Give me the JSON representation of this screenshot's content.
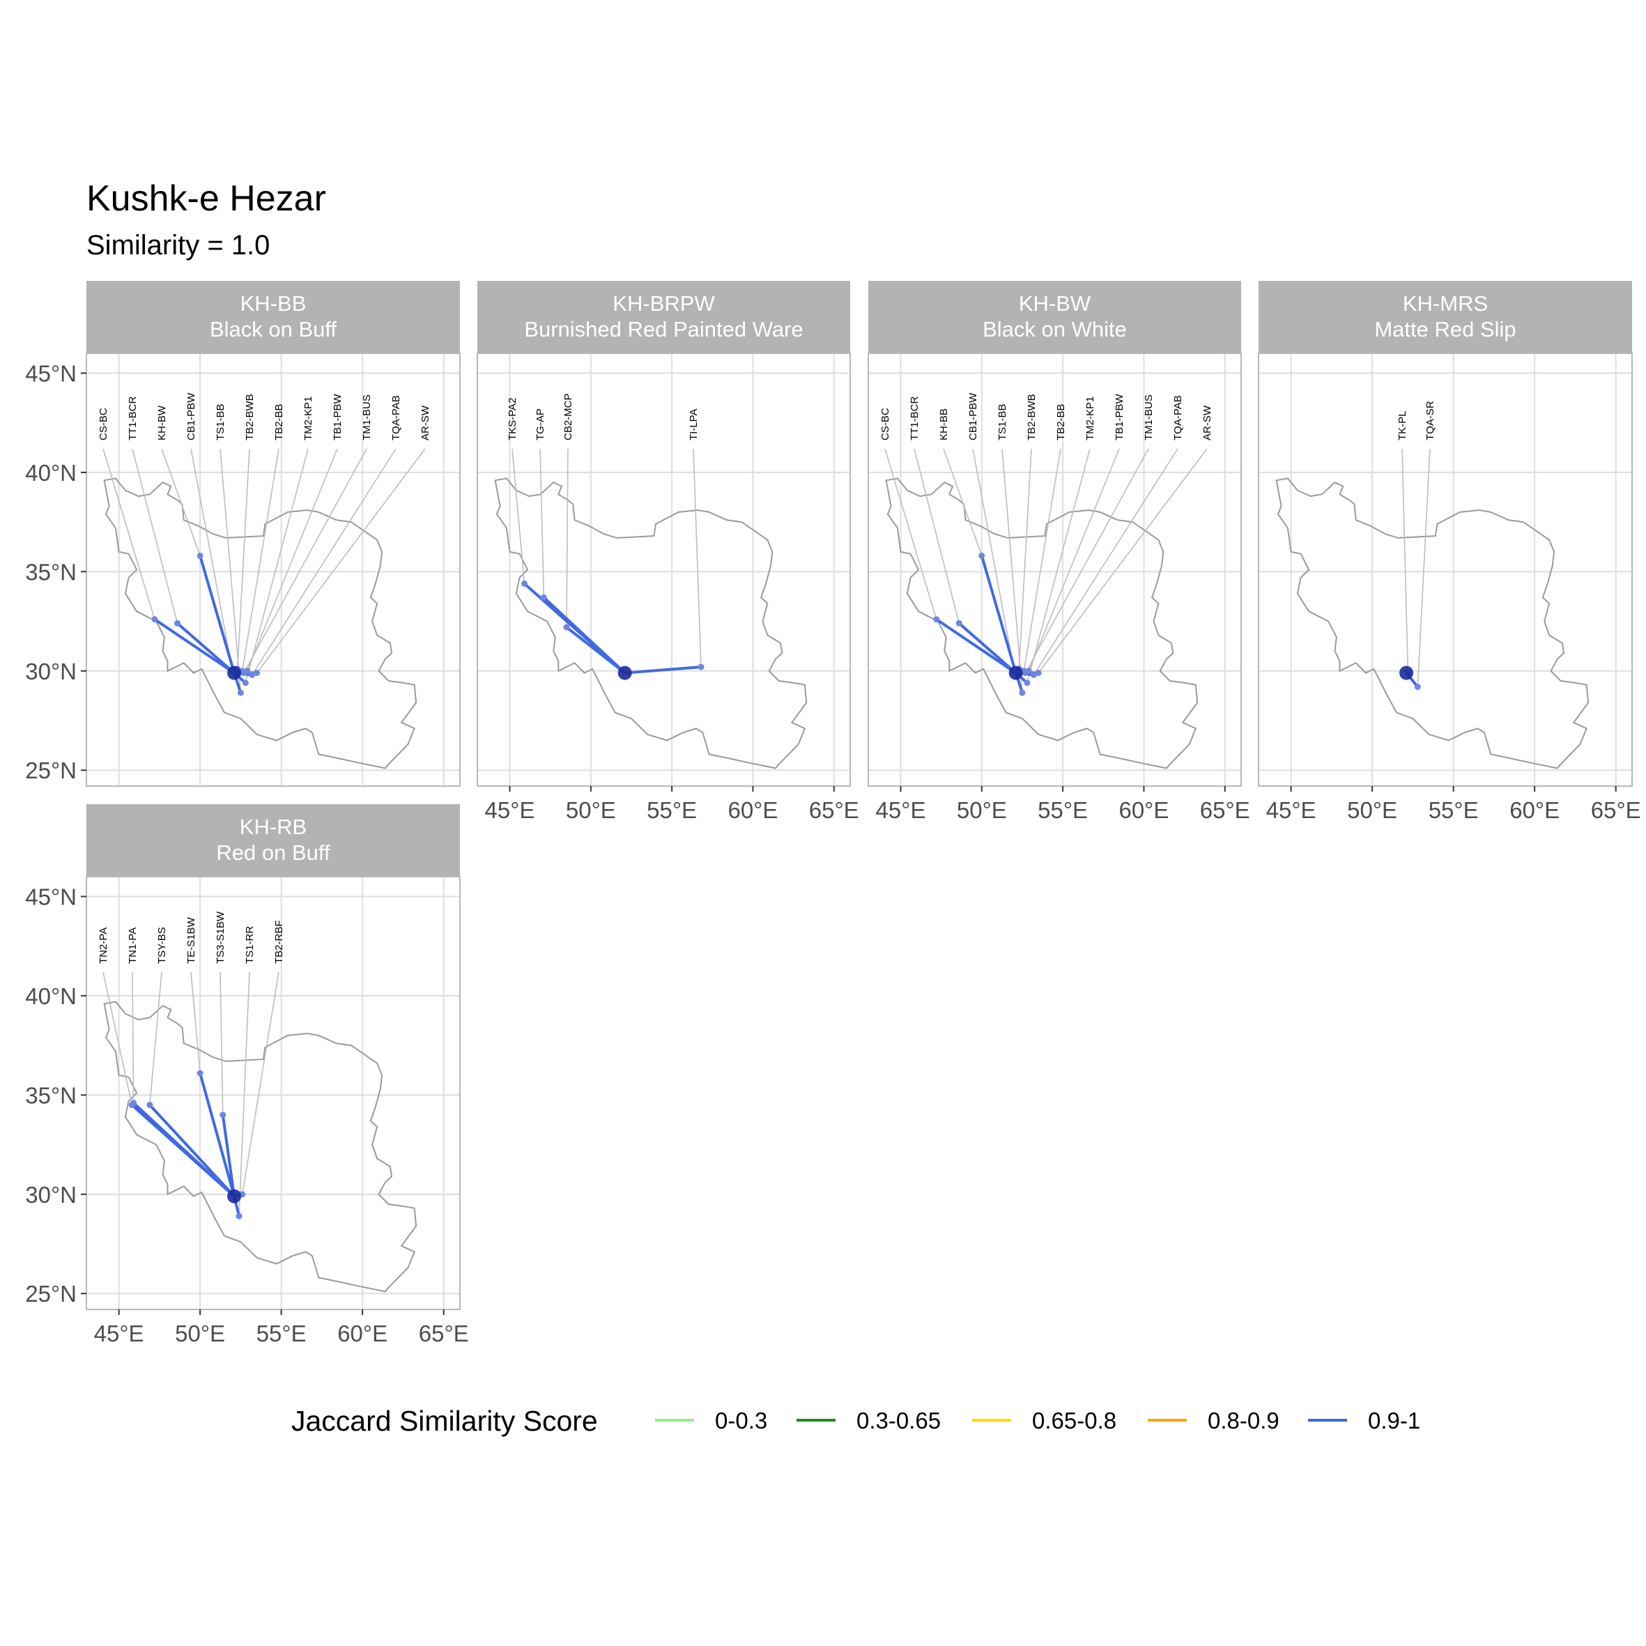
{
  "title": "Kushk-e Hezar",
  "subtitle": "Similarity = 1.0",
  "colors": {
    "strip": "#b3b3b3",
    "grid": "#dedede",
    "border": "#b8b8b8",
    "map_outline": "#9a9a9a",
    "leader": "#bdbdbd",
    "origin": "#1a2a9c"
  },
  "axes": {
    "x_ticks": [
      45,
      50,
      55,
      60,
      65
    ],
    "x_tick_labels": [
      "45°E",
      "50°E",
      "55°E",
      "60°E",
      "65°E"
    ],
    "y_ticks": [
      25,
      30,
      35,
      40,
      45
    ],
    "y_tick_labels": [
      "25°N",
      "30°N",
      "35°N",
      "40°N",
      "45°N"
    ],
    "xlim": [
      43,
      66
    ],
    "ylim": [
      24.2,
      46
    ]
  },
  "origin": {
    "lon": 52.1,
    "lat": 29.9
  },
  "legend": {
    "title": "Jaccard Similarity Score",
    "entries": [
      {
        "label": "0-0.3",
        "color": "#90ee90"
      },
      {
        "label": "0.3-0.65",
        "color": "#228b22"
      },
      {
        "label": "0.65-0.8",
        "color": "#ffd700"
      },
      {
        "label": "0.8-0.9",
        "color": "#ffa500"
      },
      {
        "label": "0.9-1",
        "color": "#4169e1"
      }
    ]
  },
  "panels": [
    {
      "code": "KH-BB",
      "name": "Black on Buff",
      "sites": [
        {
          "label": "CS-BC",
          "lon": 47.2,
          "lat": 32.6
        },
        {
          "label": "TT1-BCR",
          "lon": 48.6,
          "lat": 32.4
        },
        {
          "label": "KH-BW",
          "lon": 50.0,
          "lat": 35.8
        },
        {
          "label": "CB1-PBW",
          "lon": 52.0,
          "lat": 30.0
        },
        {
          "label": "TS1-BB",
          "lon": 52.5,
          "lat": 28.9
        },
        {
          "label": "TB2-BWB",
          "lon": 52.3,
          "lat": 30.1
        },
        {
          "label": "TB2-BB",
          "lon": 52.6,
          "lat": 30.0
        },
        {
          "label": "TM2-KP1",
          "lon": 52.8,
          "lat": 29.4
        },
        {
          "label": "TB1-PBW",
          "lon": 52.9,
          "lat": 30.0
        },
        {
          "label": "TM1-BUS",
          "lon": 52.7,
          "lat": 29.9
        },
        {
          "label": "TQA-PAB",
          "lon": 53.2,
          "lat": 29.8
        },
        {
          "label": "AR-SW",
          "lon": 53.5,
          "lat": 29.9
        }
      ]
    },
    {
      "code": "KH-BRPW",
      "name": "Burnished Red Painted Ware",
      "sites": [
        {
          "label": "TKS-PA2",
          "lon": 45.9,
          "lat": 34.4
        },
        {
          "label": "TG-AP",
          "lon": 47.1,
          "lat": 33.7
        },
        {
          "label": "CB2-MCP",
          "lon": 48.5,
          "lat": 32.2
        },
        {
          "label": "TI-LPA",
          "lon": 56.8,
          "lat": 30.2
        }
      ]
    },
    {
      "code": "KH-BW",
      "name": "Black on White",
      "sites": [
        {
          "label": "CS-BC",
          "lon": 47.2,
          "lat": 32.6
        },
        {
          "label": "TT1-BCR",
          "lon": 48.6,
          "lat": 32.4
        },
        {
          "label": "KH-BB",
          "lon": 50.0,
          "lat": 35.8
        },
        {
          "label": "CB1-PBW",
          "lon": 52.0,
          "lat": 30.0
        },
        {
          "label": "TS1-BB",
          "lon": 52.5,
          "lat": 28.9
        },
        {
          "label": "TB2-BWB",
          "lon": 52.3,
          "lat": 30.1
        },
        {
          "label": "TB2-BB",
          "lon": 52.6,
          "lat": 30.0
        },
        {
          "label": "TM2-KP1",
          "lon": 52.8,
          "lat": 29.4
        },
        {
          "label": "TB1-PBW",
          "lon": 52.9,
          "lat": 30.0
        },
        {
          "label": "TM1-BUS",
          "lon": 52.7,
          "lat": 29.9
        },
        {
          "label": "TQA-PAB",
          "lon": 53.2,
          "lat": 29.8
        },
        {
          "label": "AR-SW",
          "lon": 53.5,
          "lat": 29.9
        }
      ]
    },
    {
      "code": "KH-MRS",
      "name": "Matte Red Slip",
      "sites": [
        {
          "label": "TK-PL",
          "lon": 52.2,
          "lat": 29.9
        },
        {
          "label": "TQA-SR",
          "lon": 52.8,
          "lat": 29.2
        }
      ]
    },
    {
      "code": "KH-RB",
      "name": "Red on Buff",
      "sites": [
        {
          "label": "TN2-PA",
          "lon": 45.8,
          "lat": 34.5
        },
        {
          "label": "TN1-PA",
          "lon": 45.9,
          "lat": 34.6
        },
        {
          "label": "TSY-BS",
          "lon": 46.9,
          "lat": 34.5
        },
        {
          "label": "TE-S1BW",
          "lon": 50.0,
          "lat": 36.1
        },
        {
          "label": "TS3-S1BW",
          "lon": 51.4,
          "lat": 34.0
        },
        {
          "label": "TS1-RR",
          "lon": 52.4,
          "lat": 28.9
        },
        {
          "label": "TB2-RBF",
          "lon": 52.6,
          "lat": 30.0
        }
      ]
    }
  ]
}
